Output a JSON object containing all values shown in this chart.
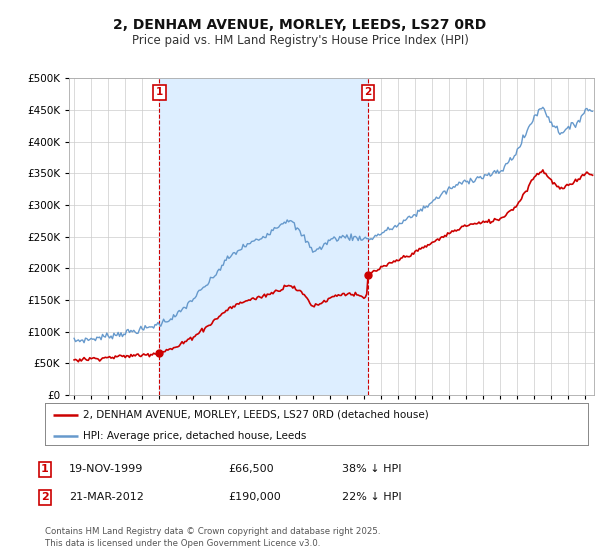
{
  "title": "2, DENHAM AVENUE, MORLEY, LEEDS, LS27 0RD",
  "subtitle": "Price paid vs. HM Land Registry's House Price Index (HPI)",
  "title_fontsize": 10,
  "subtitle_fontsize": 8.5,
  "background_color": "#ffffff",
  "grid_color": "#cccccc",
  "plot_bg_color": "#ffffff",
  "shade_color": "#ddeeff",
  "red_color": "#cc0000",
  "blue_color": "#6699cc",
  "annotation_box_color": "#cc0000",
  "footer_text": "Contains HM Land Registry data © Crown copyright and database right 2025.\nThis data is licensed under the Open Government Licence v3.0.",
  "legend_entry1": "2, DENHAM AVENUE, MORLEY, LEEDS, LS27 0RD (detached house)",
  "legend_entry2": "HPI: Average price, detached house, Leeds",
  "sale1_label": "1",
  "sale1_date": "19-NOV-1999",
  "sale1_price": "£66,500",
  "sale1_hpi": "38% ↓ HPI",
  "sale2_label": "2",
  "sale2_date": "21-MAR-2012",
  "sale2_price": "£190,000",
  "sale2_hpi": "22% ↓ HPI",
  "ylim": [
    0,
    500000
  ],
  "yticks": [
    0,
    50000,
    100000,
    150000,
    200000,
    250000,
    300000,
    350000,
    400000,
    450000,
    500000
  ],
  "sale1_year": 2000.0,
  "sale2_year": 2012.25,
  "sale1_price_val": 66500,
  "sale2_price_val": 190000,
  "xmin": 1995.0,
  "xmax": 2025.5
}
